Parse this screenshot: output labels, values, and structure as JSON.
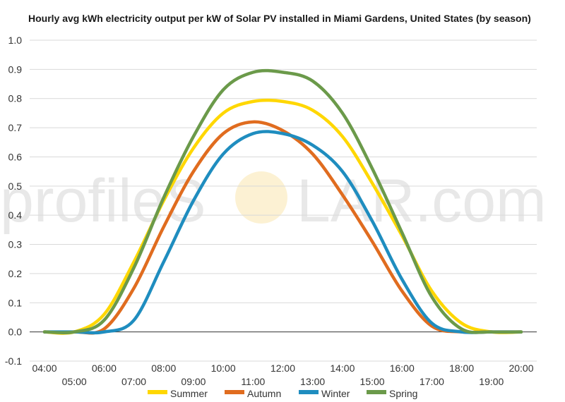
{
  "chart_data": {
    "type": "line",
    "title": "Hourly avg kWh electricity output per kW of Solar PV installed in Miami Gardens, United States (by season)",
    "xlabel": "",
    "ylabel": "",
    "ylim": [
      -0.1,
      1.0
    ],
    "yticks": [
      "-0.1",
      "0.0",
      "0.1",
      "0.2",
      "0.3",
      "0.4",
      "0.5",
      "0.6",
      "0.7",
      "0.8",
      "0.9",
      "1.0"
    ],
    "x": [
      "04:00",
      "05:00",
      "06:00",
      "07:00",
      "08:00",
      "09:00",
      "10:00",
      "11:00",
      "12:00",
      "13:00",
      "14:00",
      "15:00",
      "16:00",
      "17:00",
      "18:00",
      "19:00",
      "20:00"
    ],
    "grid": true,
    "legend": "bottom",
    "series": [
      {
        "name": "Summer",
        "color": "#ffd700",
        "values": [
          0.0,
          0.0,
          0.06,
          0.24,
          0.45,
          0.63,
          0.75,
          0.79,
          0.79,
          0.76,
          0.67,
          0.51,
          0.33,
          0.14,
          0.03,
          0.0,
          0.0
        ]
      },
      {
        "name": "Autumn",
        "color": "#e06c1f",
        "values": [
          0.0,
          0.0,
          0.01,
          0.15,
          0.36,
          0.55,
          0.68,
          0.72,
          0.69,
          0.61,
          0.47,
          0.31,
          0.14,
          0.02,
          0.0,
          0.0,
          0.0
        ]
      },
      {
        "name": "Winter",
        "color": "#1f8dbf",
        "values": [
          0.0,
          0.0,
          0.0,
          0.04,
          0.24,
          0.45,
          0.61,
          0.68,
          0.68,
          0.64,
          0.55,
          0.38,
          0.18,
          0.03,
          0.0,
          0.0,
          0.0
        ]
      },
      {
        "name": "Spring",
        "color": "#6b9a4a",
        "values": [
          0.0,
          0.0,
          0.04,
          0.22,
          0.46,
          0.67,
          0.83,
          0.89,
          0.89,
          0.86,
          0.75,
          0.56,
          0.34,
          0.12,
          0.01,
          0.0,
          0.0
        ]
      }
    ]
  },
  "watermark": {
    "text_left": "profileS",
    "text_right": "LAR.com"
  }
}
